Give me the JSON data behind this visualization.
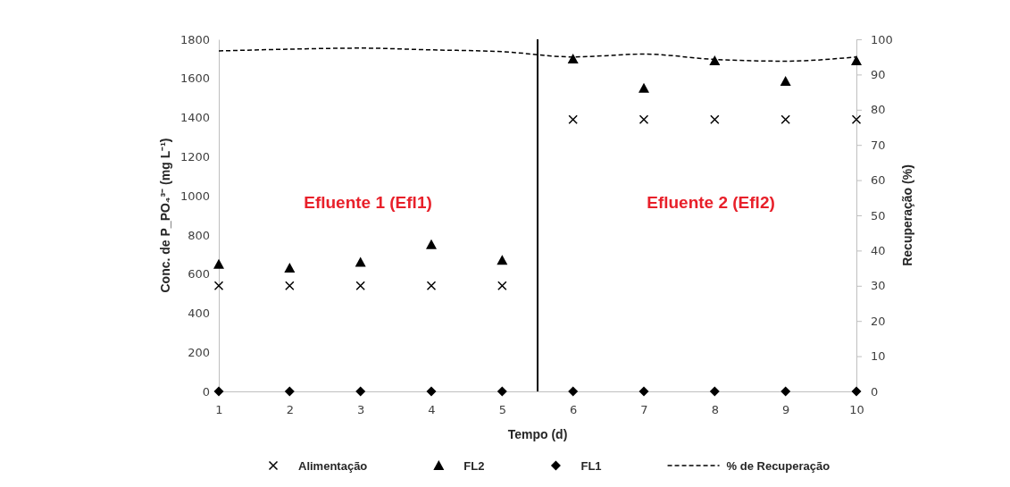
{
  "chart_data": {
    "type": "scatter",
    "xlabel": "Tempo (d)",
    "ylabel": "Conc.  de P_PO₄³⁻ (mg L⁻¹)",
    "y2label": "Recuperação (%)",
    "x": [
      1,
      2,
      3,
      4,
      5,
      6,
      7,
      8,
      9,
      10
    ],
    "xlim": [
      1,
      10
    ],
    "xticks": [
      1,
      2,
      3,
      4,
      5,
      6,
      7,
      8,
      9,
      10
    ],
    "ylim": [
      0,
      1800
    ],
    "yticks": [
      0,
      200,
      400,
      600,
      800,
      1000,
      1200,
      1400,
      1600,
      1800
    ],
    "y2lim": [
      0,
      100
    ],
    "y2ticks": [
      0,
      10,
      20,
      30,
      40,
      50,
      60,
      70,
      80,
      90,
      100
    ],
    "grid": false,
    "legend": "bottom",
    "series": [
      {
        "name": "Alimentação",
        "marker": "cross",
        "color": "#000000",
        "values": [
          540,
          540,
          540,
          540,
          540,
          1390,
          1390,
          1390,
          1390,
          1390
        ]
      },
      {
        "name": "FL2",
        "marker": "triangle",
        "color": "#000000",
        "values": [
          650,
          630,
          660,
          750,
          670,
          1700,
          1550,
          1690,
          1585,
          1690
        ]
      },
      {
        "name": "FL1",
        "marker": "diamond",
        "color": "#000000",
        "values": [
          0,
          0,
          0,
          0,
          0,
          0,
          0,
          0,
          0,
          0
        ]
      },
      {
        "name": "% de Recuperação",
        "type": "line",
        "axis": "y2",
        "marker": "none",
        "line_style": "dashed",
        "color": "#000000",
        "values": [
          96.7,
          97.2,
          97.5,
          97.0,
          96.5,
          95.0,
          95.8,
          94.3,
          93.8,
          95.0
        ]
      }
    ],
    "ref_lines": [
      {
        "axis": "x",
        "value": 5.5,
        "color": "#000000",
        "line_style": "solid"
      }
    ],
    "annotations": [
      "Efluente 1 (Efl1)",
      "Efluente 2 (Efl2)"
    ]
  }
}
